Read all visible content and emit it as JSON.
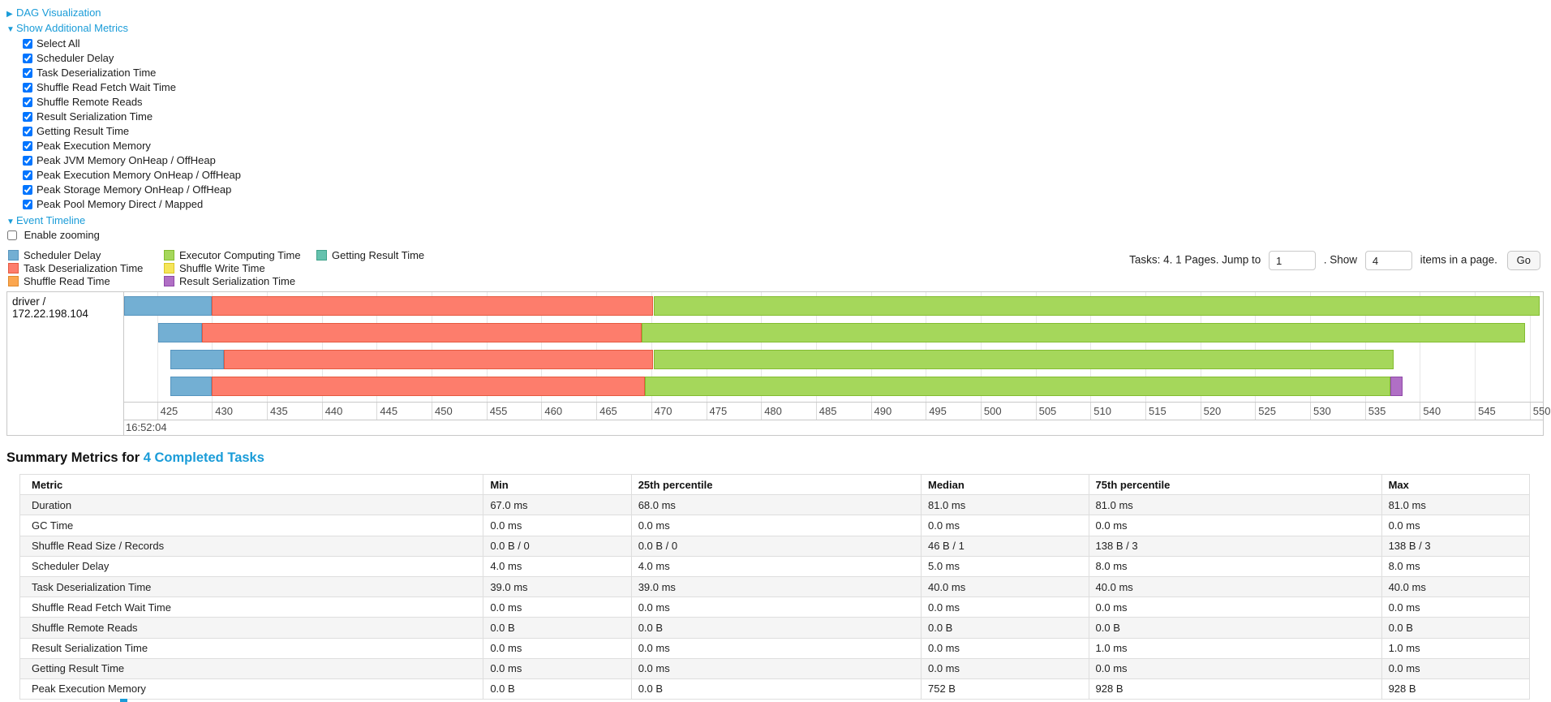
{
  "colors": {
    "link_blue": "#1a9cd8",
    "grid_line": "#e7e7e7",
    "table_stripe": "#f5f5f5"
  },
  "nav": {
    "dag_link": "DAG Visualization",
    "dag_arrow": "▶",
    "metrics_link": "Show Additional Metrics",
    "metrics_arrow": "▼",
    "timeline_link": "Event Timeline",
    "timeline_arrow": "▼",
    "enable_zooming": "Enable zooming",
    "metric_options": [
      "Select All",
      "Scheduler Delay",
      "Task Deserialization Time",
      "Shuffle Read Fetch Wait Time",
      "Shuffle Remote Reads",
      "Result Serialization Time",
      "Getting Result Time",
      "Peak Execution Memory",
      "Peak JVM Memory OnHeap / OffHeap",
      "Peak Execution Memory OnHeap / OffHeap",
      "Peak Storage Memory OnHeap / OffHeap",
      "Peak Pool Memory Direct / Mapped"
    ]
  },
  "pagination": {
    "prefix": "Tasks: 4. 1 Pages. Jump to",
    "jump_value": "1",
    "show_label": ". Show",
    "show_value": "4",
    "suffix": "items in a page.",
    "go": "Go"
  },
  "legend": {
    "columns": [
      [
        "scheduler-delay",
        "task-deserialization",
        "shuffle-read"
      ],
      [
        "executor-computing",
        "shuffle-write",
        "result-serialization"
      ],
      [
        "getting-result"
      ]
    ],
    "items": {
      "scheduler-delay": {
        "label": "Scheduler Delay",
        "fill": "#73AFD3",
        "border": "#5694BE"
      },
      "task-deserialization": {
        "label": "Task Deserialization Time",
        "fill": "#FD7D6C",
        "border": "#E5593F"
      },
      "shuffle-read": {
        "label": "Shuffle Read Time",
        "fill": "#FBA64F",
        "border": "#E08A2C"
      },
      "executor-computing": {
        "label": "Executor Computing Time",
        "fill": "#A5D75B",
        "border": "#83BC30"
      },
      "shuffle-write": {
        "label": "Shuffle Write Time",
        "fill": "#F5E559",
        "border": "#DCC827"
      },
      "result-serialization": {
        "label": "Result Serialization Time",
        "fill": "#B06FC5",
        "border": "#8F48A8"
      },
      "getting-result": {
        "label": "Getting Result Time",
        "fill": "#65C2AE",
        "border": "#3FA38A"
      }
    }
  },
  "chart_data": {
    "type": "timeline",
    "title": "Event Timeline",
    "group_label": "driver / 172.22.198.104",
    "x_axis": {
      "unit": "milliseconds after 16:52:04",
      "major_label": "16:52:04",
      "tick_start": 425,
      "tick_end": 550,
      "tick_step": 5,
      "view_min": 422.0,
      "view_max": 551.2,
      "grid": true
    },
    "tasks": [
      {
        "segments": [
          {
            "name": "scheduler-delay",
            "start": 422.0,
            "end": 430.0
          },
          {
            "name": "task-deserialization",
            "start": 430.0,
            "end": 470.2
          },
          {
            "name": "executor-computing",
            "start": 470.2,
            "end": 550.9
          }
        ]
      },
      {
        "segments": [
          {
            "name": "scheduler-delay",
            "start": 425.1,
            "end": 429.1
          },
          {
            "name": "task-deserialization",
            "start": 429.1,
            "end": 469.1
          },
          {
            "name": "executor-computing",
            "start": 469.1,
            "end": 549.6
          }
        ]
      },
      {
        "segments": [
          {
            "name": "scheduler-delay",
            "start": 426.2,
            "end": 431.1
          },
          {
            "name": "task-deserialization",
            "start": 431.1,
            "end": 470.2
          },
          {
            "name": "executor-computing",
            "start": 470.2,
            "end": 537.6
          }
        ]
      },
      {
        "segments": [
          {
            "name": "scheduler-delay",
            "start": 426.2,
            "end": 430.0
          },
          {
            "name": "task-deserialization",
            "start": 430.0,
            "end": 469.4
          },
          {
            "name": "executor-computing",
            "start": 469.4,
            "end": 537.3
          },
          {
            "name": "result-serialization",
            "start": 537.3,
            "end": 538.4
          }
        ]
      }
    ]
  },
  "summary": {
    "title_prefix": "Summary Metrics for",
    "title_link": "4 Completed Tasks",
    "columns": [
      "Metric",
      "Min",
      "25th percentile",
      "Median",
      "75th percentile",
      "Max"
    ],
    "col_widths_pct": [
      30.7,
      9.8,
      19.2,
      11.1,
      19.4,
      9.8
    ],
    "rows": [
      [
        "Duration",
        "67.0 ms",
        "68.0 ms",
        "81.0 ms",
        "81.0 ms",
        "81.0 ms"
      ],
      [
        "GC Time",
        "0.0 ms",
        "0.0 ms",
        "0.0 ms",
        "0.0 ms",
        "0.0 ms"
      ],
      [
        "Shuffle Read Size / Records",
        "0.0 B / 0",
        "0.0 B / 0",
        "46 B / 1",
        "138 B / 3",
        "138 B / 3"
      ],
      [
        "Scheduler Delay",
        "4.0 ms",
        "4.0 ms",
        "5.0 ms",
        "8.0 ms",
        "8.0 ms"
      ],
      [
        "Task Deserialization Time",
        "39.0 ms",
        "39.0 ms",
        "40.0 ms",
        "40.0 ms",
        "40.0 ms"
      ],
      [
        "Shuffle Read Fetch Wait Time",
        "0.0 ms",
        "0.0 ms",
        "0.0 ms",
        "0.0 ms",
        "0.0 ms"
      ],
      [
        "Shuffle Remote Reads",
        "0.0 B",
        "0.0 B",
        "0.0 B",
        "0.0 B",
        "0.0 B"
      ],
      [
        "Result Serialization Time",
        "0.0 ms",
        "0.0 ms",
        "0.0 ms",
        "1.0 ms",
        "1.0 ms"
      ],
      [
        "Getting Result Time",
        "0.0 ms",
        "0.0 ms",
        "0.0 ms",
        "0.0 ms",
        "0.0 ms"
      ],
      [
        "Peak Execution Memory",
        "0.0 B",
        "0.0 B",
        "752 B",
        "928 B",
        "928 B"
      ]
    ]
  }
}
